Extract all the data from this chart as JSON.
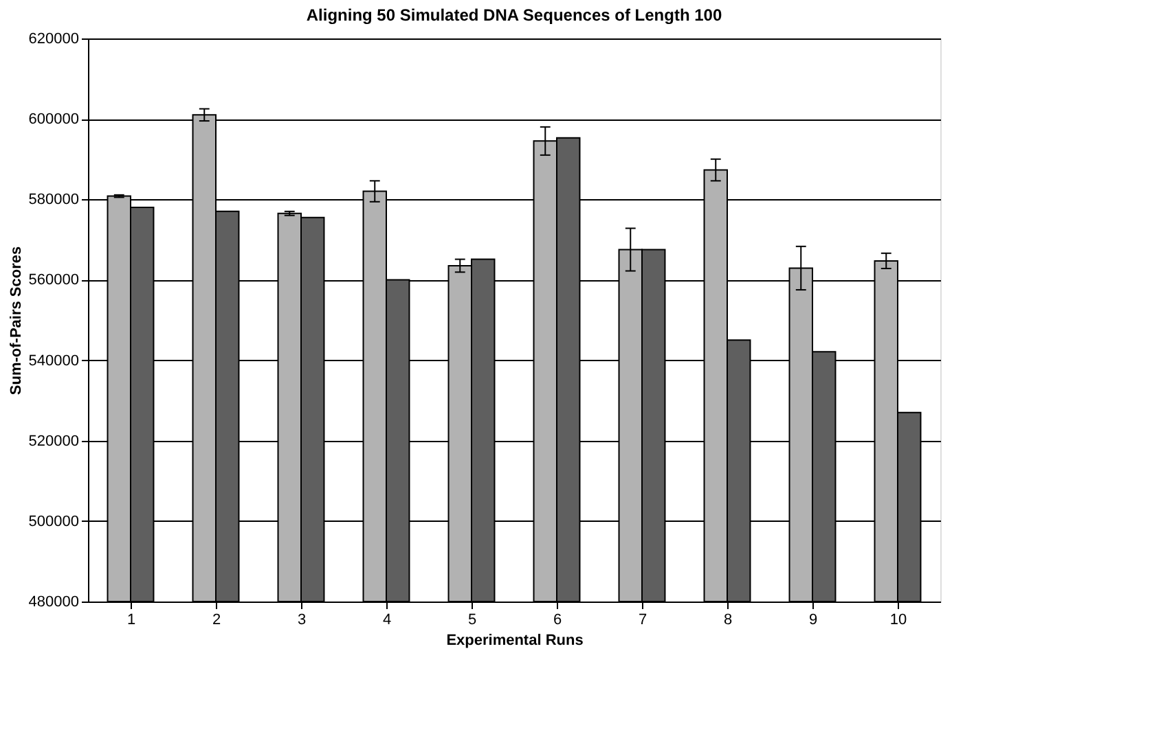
{
  "chart_data": {
    "type": "bar",
    "title": "Aligning 50 Simulated DNA Sequences of Length 100",
    "xlabel": "Experimental Runs",
    "ylabel": "Sum-of-Pairs Scores",
    "categories": [
      "1",
      "2",
      "3",
      "4",
      "5",
      "6",
      "7",
      "8",
      "9",
      "10"
    ],
    "series": [
      {
        "color": "#b2b2b2",
        "values": [
          580800,
          601000,
          576500,
          582000,
          563500,
          594500,
          567500,
          587300,
          562900,
          564700
        ],
        "errors": [
          300,
          1500,
          500,
          2600,
          1600,
          3500,
          5300,
          2700,
          5400,
          1900
        ]
      },
      {
        "color": "#5f5f5f",
        "values": [
          578000,
          577000,
          575500,
          560000,
          565100,
          595300,
          567500,
          545000,
          542100,
          527000
        ]
      }
    ],
    "ylim": [
      480000,
      620000
    ],
    "yticks": [
      480000,
      500000,
      520000,
      540000,
      560000,
      580000,
      600000,
      620000
    ],
    "grid": "y",
    "legend": false
  }
}
